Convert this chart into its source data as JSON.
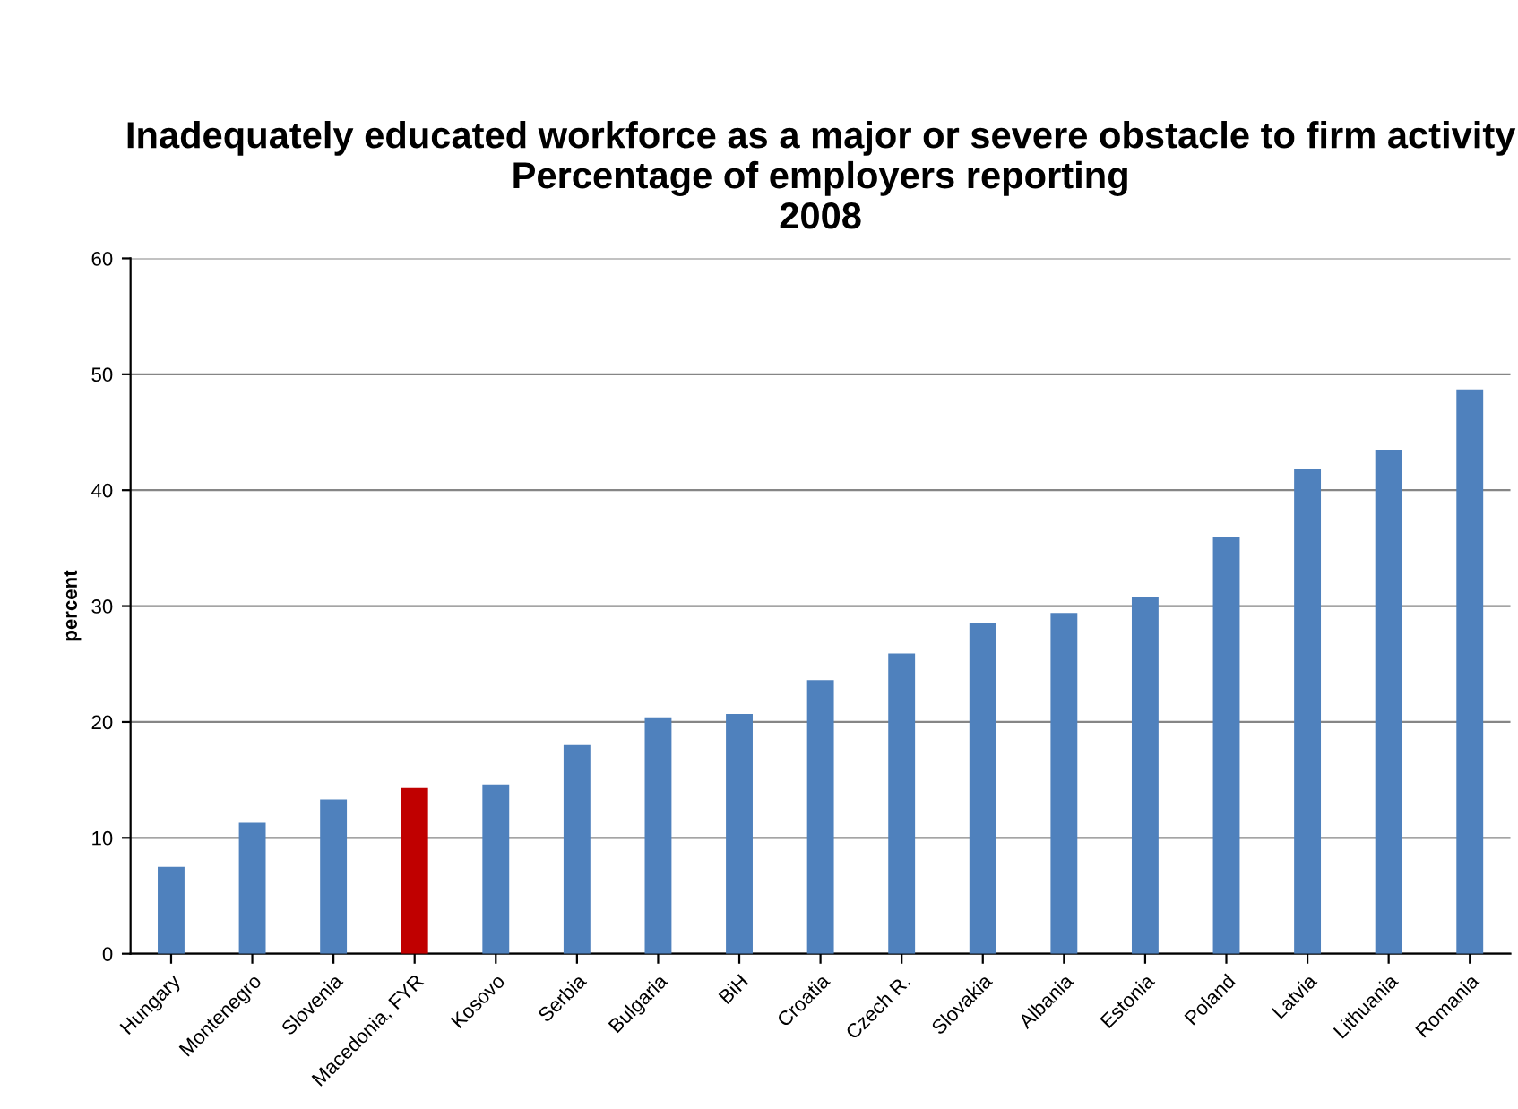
{
  "chart_data": {
    "type": "bar",
    "title": "Inadequately educated workforce as a major or severe obstacle to firm activity\nPercentage of employers reporting\n2008",
    "ylabel": "percent",
    "categories": [
      "Hungary",
      "Montenegro",
      "Slovenia",
      "Macedonia, FYR",
      "Kosovo",
      "Serbia",
      "Bulgaria",
      "BiH",
      "Croatia",
      "Czech R.",
      "Slovakia",
      "Albania",
      "Estonia",
      "Poland",
      "Latvia",
      "Lithuania",
      "Romania"
    ],
    "values": [
      7.5,
      11.3,
      13.3,
      14.3,
      14.6,
      18.0,
      20.4,
      20.7,
      23.6,
      25.9,
      28.5,
      29.4,
      30.8,
      36.0,
      41.8,
      43.5,
      48.7
    ],
    "colors": [
      "#4f81bd",
      "#4f81bd",
      "#4f81bd",
      "#c00000",
      "#4f81bd",
      "#4f81bd",
      "#4f81bd",
      "#4f81bd",
      "#4f81bd",
      "#4f81bd",
      "#4f81bd",
      "#4f81bd",
      "#4f81bd",
      "#4f81bd",
      "#4f81bd",
      "#4f81bd",
      "#4f81bd"
    ],
    "ylim": [
      0,
      60
    ],
    "yticks": [
      0,
      10,
      20,
      30,
      40,
      50,
      60
    ],
    "grid": "y",
    "legend": false
  }
}
